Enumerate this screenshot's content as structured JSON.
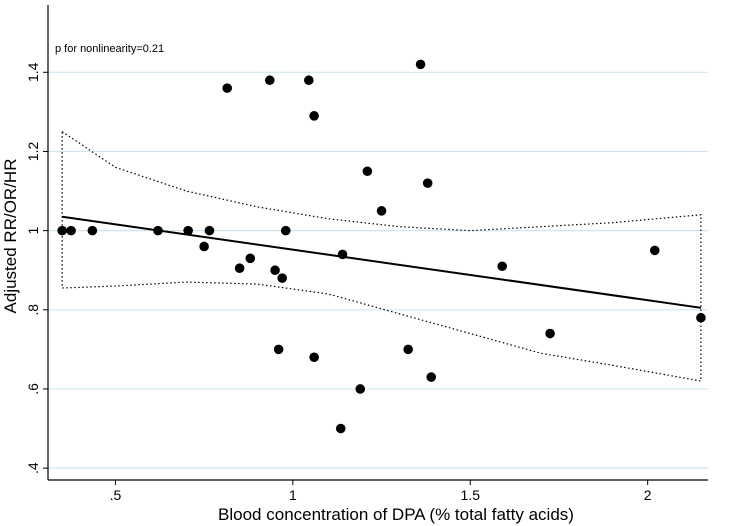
{
  "chart_data": {
    "type": "scatter",
    "xlabel": "Blood concentration of DPA (% total fatty acids)",
    "ylabel": "Adjusted RR/OR/HR",
    "annotation": "p for nonlinearity=0.21",
    "xlim": [
      0.31,
      2.17
    ],
    "ylim": [
      0.37,
      1.57
    ],
    "x_ticks": [
      {
        "value": 0.5,
        "label": ".5"
      },
      {
        "value": 1,
        "label": "1"
      },
      {
        "value": 1.5,
        "label": "1.5"
      },
      {
        "value": 2,
        "label": "2"
      }
    ],
    "y_ticks": [
      {
        "value": 0.4,
        "label": ".4"
      },
      {
        "value": 0.6,
        "label": ".6"
      },
      {
        "value": 0.8,
        "label": ".8"
      },
      {
        "value": 1,
        "label": "1"
      },
      {
        "value": 1.2,
        "label": "1.2"
      },
      {
        "value": 1.4,
        "label": "1.4"
      }
    ],
    "grid": "horizontal",
    "points": [
      {
        "x": 0.35,
        "y": 1.0
      },
      {
        "x": 0.375,
        "y": 1.0
      },
      {
        "x": 0.435,
        "y": 1.0
      },
      {
        "x": 0.62,
        "y": 1.0
      },
      {
        "x": 0.705,
        "y": 1.0
      },
      {
        "x": 0.75,
        "y": 0.96
      },
      {
        "x": 0.765,
        "y": 1.0
      },
      {
        "x": 0.815,
        "y": 1.36
      },
      {
        "x": 0.85,
        "y": 0.905
      },
      {
        "x": 0.88,
        "y": 0.93
      },
      {
        "x": 0.935,
        "y": 1.38
      },
      {
        "x": 0.95,
        "y": 0.9
      },
      {
        "x": 0.96,
        "y": 0.7
      },
      {
        "x": 0.97,
        "y": 0.88
      },
      {
        "x": 0.98,
        "y": 1.0
      },
      {
        "x": 1.045,
        "y": 1.38
      },
      {
        "x": 1.06,
        "y": 1.29
      },
      {
        "x": 1.06,
        "y": 0.68
      },
      {
        "x": 1.135,
        "y": 0.5
      },
      {
        "x": 1.14,
        "y": 0.94
      },
      {
        "x": 1.19,
        "y": 0.6
      },
      {
        "x": 1.21,
        "y": 1.15
      },
      {
        "x": 1.25,
        "y": 1.05
      },
      {
        "x": 1.325,
        "y": 0.7
      },
      {
        "x": 1.36,
        "y": 1.42
      },
      {
        "x": 1.38,
        "y": 1.12
      },
      {
        "x": 1.39,
        "y": 0.63
      },
      {
        "x": 1.59,
        "y": 0.91
      },
      {
        "x": 1.725,
        "y": 0.74
      },
      {
        "x": 2.02,
        "y": 0.95
      },
      {
        "x": 2.15,
        "y": 0.78
      }
    ],
    "fit_line": {
      "x": [
        0.35,
        2.15
      ],
      "y": [
        1.035,
        0.805
      ]
    },
    "ci_upper": {
      "x": [
        0.35,
        0.5,
        0.7,
        0.9,
        1.1,
        1.3,
        1.5,
        1.7,
        1.9,
        2.15
      ],
      "y": [
        1.25,
        1.16,
        1.1,
        1.06,
        1.03,
        1.01,
        1.0,
        1.01,
        1.02,
        1.04
      ]
    },
    "ci_lower": {
      "x": [
        0.35,
        0.5,
        0.7,
        0.9,
        1.1,
        1.3,
        1.5,
        1.7,
        1.9,
        2.15
      ],
      "y": [
        0.855,
        0.86,
        0.87,
        0.865,
        0.84,
        0.79,
        0.74,
        0.69,
        0.66,
        0.62
      ]
    },
    "colors": {
      "points": "#000000",
      "fit": "#000000",
      "grid": "#cfe6f0",
      "axis": "#000000"
    }
  }
}
